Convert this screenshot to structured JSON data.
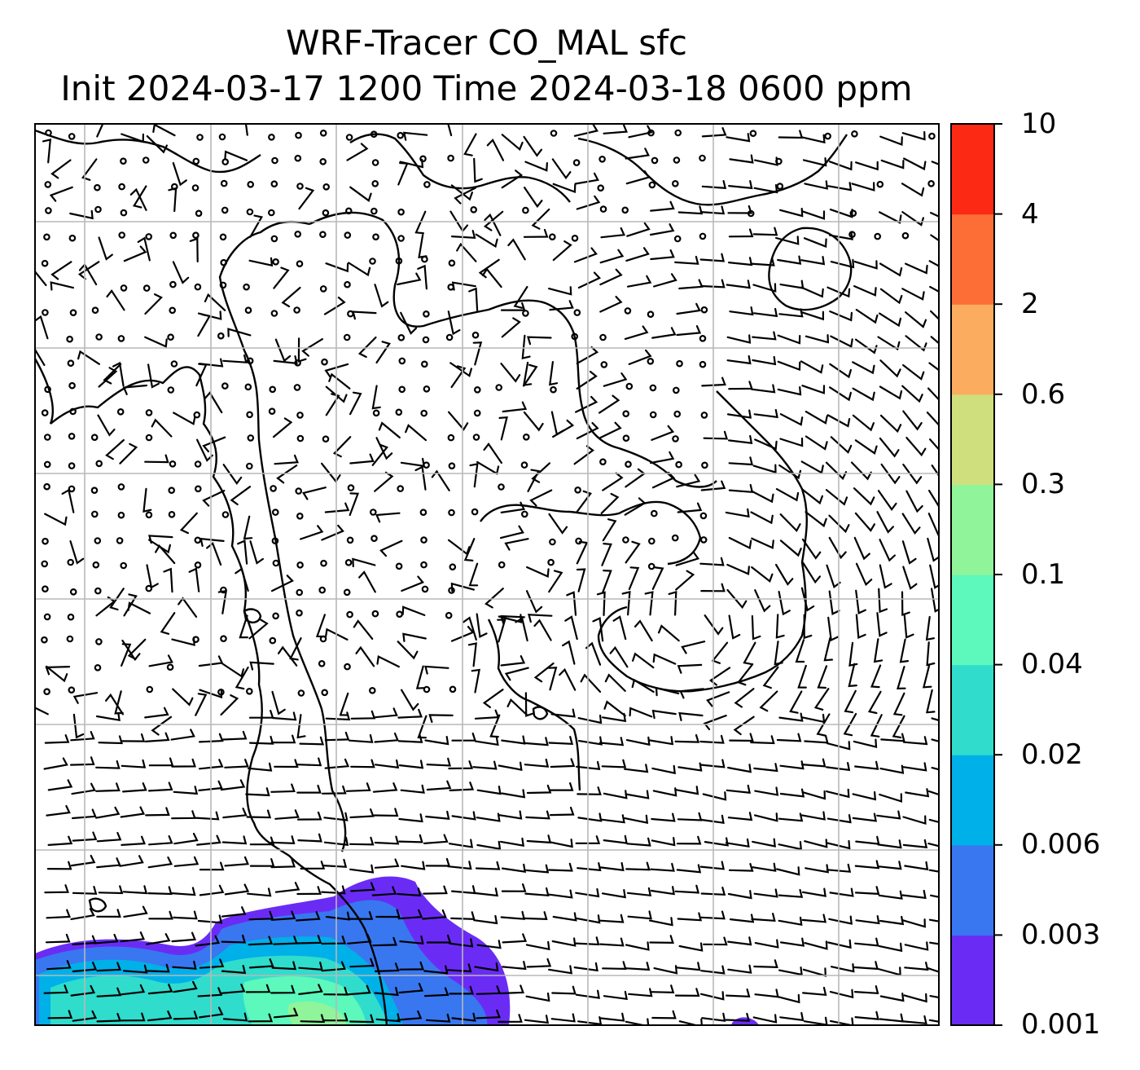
{
  "title": {
    "line1": "WRF-Tracer CO_MAL sfc",
    "line2": "Init 2024-03-17 1200 Time 2024-03-18 0600 ppm"
  },
  "colorbar": {
    "levels": [
      "0.001",
      "0.003",
      "0.006",
      "0.02",
      "0.04",
      "0.1",
      "0.3",
      "0.6",
      "2",
      "4",
      "10"
    ],
    "colors": [
      "#6a2cf5",
      "#3877f0",
      "#00b0e8",
      "#30dccc",
      "#5cf8bc",
      "#90f49a",
      "#cfdf7e",
      "#fcac5e",
      "#fc6e36",
      "#fc2a14"
    ]
  },
  "map": {
    "gridlines": "on",
    "content": "surface CO_MAL tracer concentration filled contours with wind barbs and coastlines",
    "plume_colors": [
      "#6a2cf5",
      "#3877f0",
      "#00b0e8",
      "#30dccc",
      "#5cf8bc",
      "#90f49a"
    ]
  }
}
